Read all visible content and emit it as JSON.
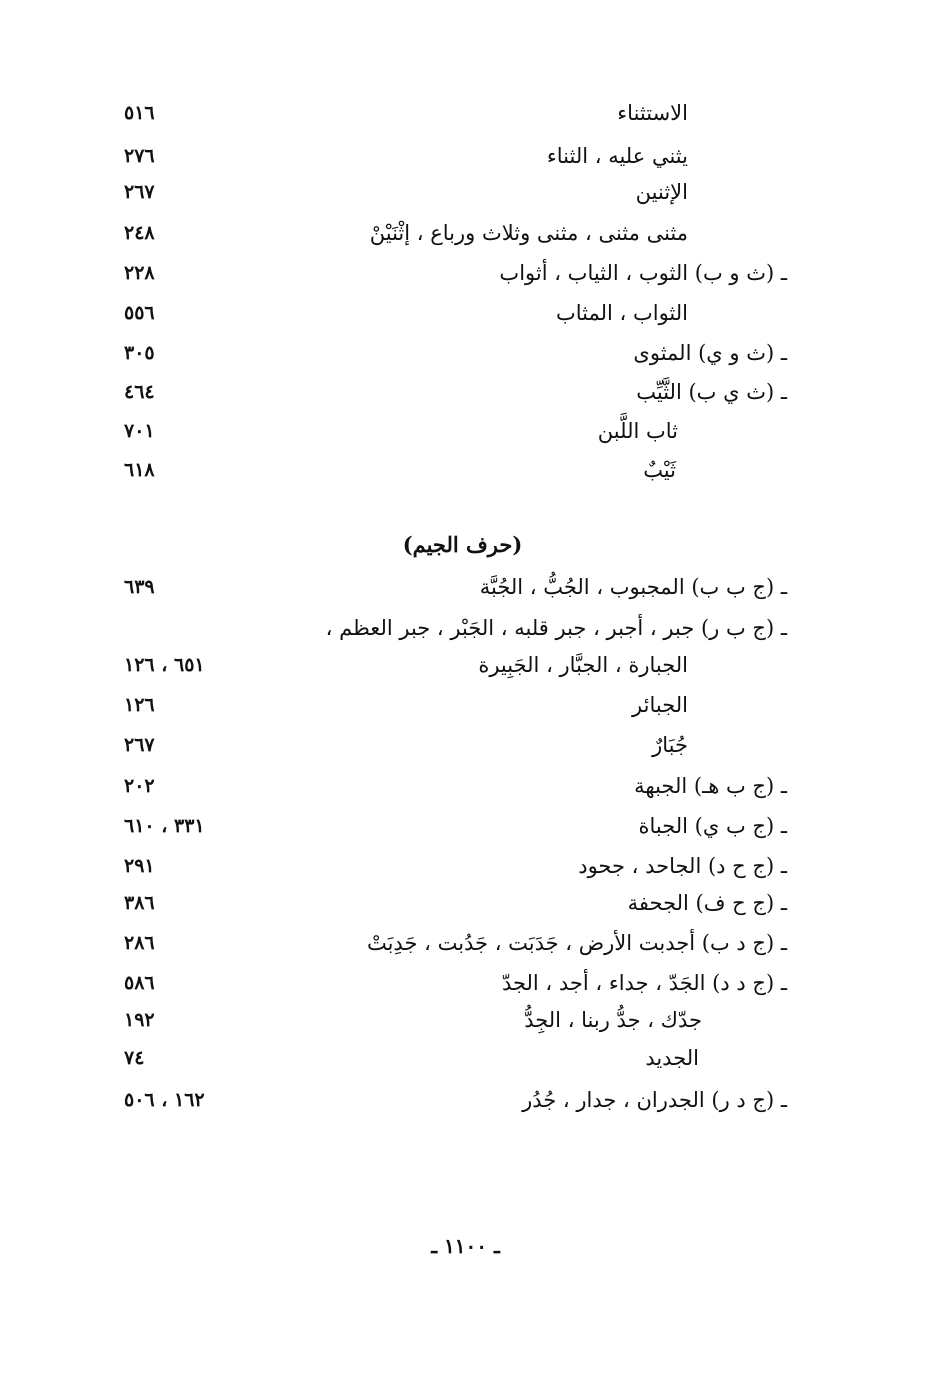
{
  "section_tha": {
    "entries": [
      {
        "term": "الاستثناء",
        "pages": "٥١٦"
      },
      {
        "term": "يثني عليه ، الثناء",
        "pages": "٢٧٦"
      },
      {
        "term": "الإثنين",
        "pages": "٢٦٧"
      },
      {
        "term": "مثنى مثنى ، مثنى وثلاث ورباع ، إثْنَيْنْ",
        "pages": "٢٤٨"
      },
      {
        "term": "ـ (ث و ب) الثوب ، الثياب ، أثواب",
        "pages": "٢٢٨"
      },
      {
        "term": "الثواب ، المثاب",
        "pages": "٥٥٦"
      },
      {
        "term": "ـ (ث و ي) المثوى",
        "pages": "٣٠٥"
      },
      {
        "term": "ـ (ث ي ب) الثَّيِّب",
        "pages": "٤٦٤"
      },
      {
        "term": "ثاب اللَّبن",
        "pages": "٧٠١"
      },
      {
        "term": "ثَيْبٌ",
        "pages": "٦١٨"
      }
    ]
  },
  "section_jeem": {
    "heading": "(حرف الجيم)",
    "entries": [
      {
        "term": "ـ (ج ب ب) المجبوب ، الجُبُّ ، الجُبَّة",
        "pages": "٦٣٩"
      },
      {
        "term": "ـ (ج ب ر) جبر ، أجبر ، جبر قلبه ، الجَبْر ، جبر العظم ،",
        "pages": ""
      },
      {
        "term": "الجبارة ، الجبَّار ، الجَبِيرة",
        "pages": "٦٥١ ، ١٢٦"
      },
      {
        "term": "الجبائر",
        "pages": "١٢٦"
      },
      {
        "term": "جُبَارٌ",
        "pages": "٢٦٧"
      },
      {
        "term": "ـ (ج ب هـ) الجبهة",
        "pages": "٢٠٢"
      },
      {
        "term": "ـ (ج ب ي) الجباة",
        "pages": "٣٣١ ، ٦١٠"
      },
      {
        "term": "ـ (ج ح د) الجاحد ، جحود",
        "pages": "٢٩١"
      },
      {
        "term": "ـ (ج ح ف) الجحفة",
        "pages": "٣٨٦"
      },
      {
        "term": "ـ (ج د ب) أجدبت الأرض ، جَدَبَت ، جَدُبت ، جَدِبَتْ",
        "pages": "٢٨٦"
      },
      {
        "term": "ـ (ج د د) الجَدّ ، جداء ، أجد ، الجدّ",
        "pages": "٥٨٦"
      },
      {
        "term": "جدّك ، جدُّ ربنا ، الجِدُّ",
        "pages": "١٩٢"
      },
      {
        "term": "الجديد",
        "pages": "٧٤"
      },
      {
        "term": "ـ (ج د ر) الجدران ، جدار ، جُدُر",
        "pages": "١٦٢ ، ٥٠٦"
      }
    ]
  },
  "footer": {
    "page_number": "ـ ١١٠٠ ـ"
  }
}
